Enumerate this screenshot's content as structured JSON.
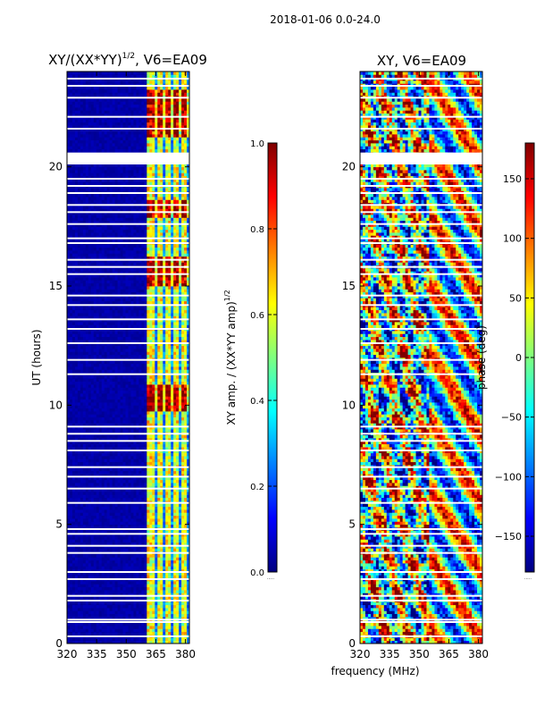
{
  "figure": {
    "suptitle": "2018-01-06 0.0-24.0",
    "xlabel": "frequency (MHz)"
  },
  "chart_data": [
    {
      "type": "heatmap",
      "title_main": "XY/(XX*YY)",
      "title_sup": "1/2",
      "title_rest": ", V6=EA09",
      "x_range": [
        320,
        382
      ],
      "x_ticks": [
        320,
        335,
        350,
        365,
        380
      ],
      "y_range": [
        0,
        24
      ],
      "y_ticks": [
        0,
        5,
        10,
        15,
        20
      ],
      "ylabel": "UT (hours)",
      "colorbar": {
        "range": [
          0.0,
          1.0
        ],
        "ticks": [
          "0.0",
          "0.2",
          "0.4",
          "0.6",
          "0.8",
          "1.0"
        ],
        "tick_values": [
          0.0,
          0.2,
          0.4,
          0.6,
          0.8,
          1.0
        ],
        "label_main": "XY amp. / (XX*YY amp)",
        "label_sup": "1/2",
        "footer": "....."
      },
      "active_band_mhz": [
        360,
        382
      ],
      "strong_channels_mhz": [
        362.5,
        367,
        371,
        375,
        379.5
      ],
      "hot_time_bands_hr": [
        [
          21.2,
          23.2
        ],
        [
          17.9,
          18.6
        ],
        [
          9.7,
          10.9
        ],
        [
          15.0,
          16.3
        ]
      ],
      "flagged_hours": [
        0.3,
        0.9,
        1.0,
        1.8,
        2.0,
        2.7,
        3.0,
        3.8,
        4.1,
        4.6,
        4.8,
        5.9,
        6.5,
        7.0,
        7.4,
        8.1,
        8.5,
        8.8,
        9.1,
        11.3,
        11.9,
        12.6,
        13.2,
        13.6,
        14.2,
        14.6,
        15.5,
        15.8,
        16.1,
        16.8,
        17.0,
        17.6,
        18.1,
        18.4,
        18.9,
        19.2,
        19.5,
        21.6,
        22.1,
        22.9,
        23.4,
        23.7
      ],
      "flagged_ranges_hr": [
        [
          20.1,
          20.6
        ]
      ],
      "value_description": "amplitude ratio, mostly near 0 below 360 MHz, up to ~1.0 in channel stripes above 360 MHz"
    },
    {
      "type": "heatmap",
      "title": "XY, V6=EA09",
      "x_range": [
        320,
        382
      ],
      "x_ticks": [
        320,
        335,
        350,
        365,
        380
      ],
      "y_range": [
        0,
        24
      ],
      "y_ticks": [
        0,
        5,
        10,
        15,
        20
      ],
      "colorbar": {
        "range": [
          -180,
          180
        ],
        "ticks": [
          "150",
          "100",
          "50",
          "0",
          "−50",
          "−100",
          "−150"
        ],
        "tick_values": [
          150,
          100,
          50,
          0,
          -50,
          -100,
          -150
        ],
        "label": "phase (deg)",
        "footer": "....."
      },
      "flagged_hours": [
        0.3,
        0.9,
        1.0,
        1.8,
        2.0,
        2.7,
        3.0,
        3.8,
        4.1,
        4.6,
        4.8,
        5.9,
        6.5,
        7.0,
        7.4,
        8.1,
        8.5,
        8.8,
        9.1,
        11.3,
        11.9,
        12.6,
        13.2,
        13.6,
        14.2,
        14.6,
        15.5,
        15.8,
        16.1,
        16.8,
        17.0,
        17.6,
        18.1,
        18.4,
        18.9,
        19.2,
        19.5,
        21.6,
        22.1,
        22.9,
        23.4,
        23.7
      ],
      "flagged_ranges_hr": [
        [
          20.1,
          20.6
        ]
      ],
      "value_description": "XY phase spanning -180 to 180 degrees, noisy with banded structure"
    }
  ],
  "colormap": [
    "#00007f",
    "#0000ff",
    "#007fff",
    "#00ffff",
    "#7fff7f",
    "#ffff00",
    "#ff7f00",
    "#ff0000",
    "#7f0000"
  ]
}
